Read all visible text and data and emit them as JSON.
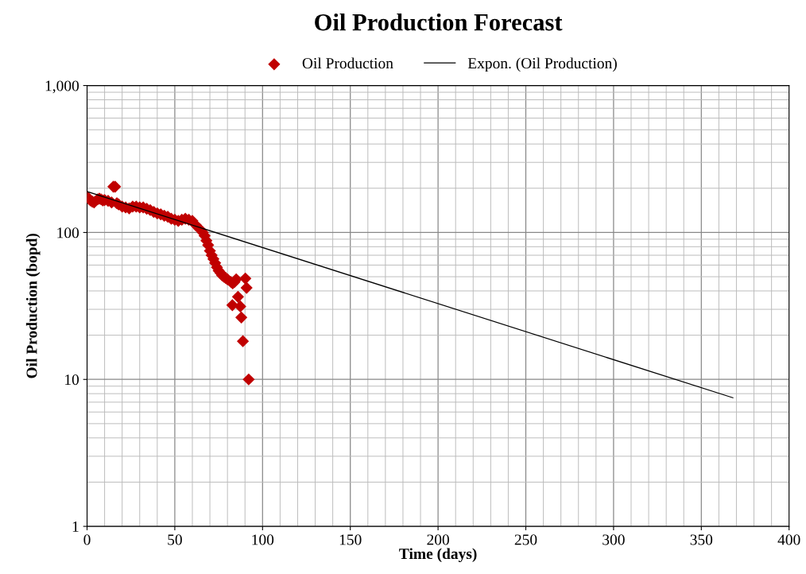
{
  "chart_data": {
    "type": "scatter",
    "title": "Oil Production Forecast",
    "xlabel": "Time (days)",
    "ylabel": "Oil Production (bopd)",
    "log": "y",
    "xlim": [
      0,
      400
    ],
    "xticks": [
      0,
      50,
      100,
      150,
      200,
      250,
      300,
      350,
      400
    ],
    "ylim": [
      1,
      1000
    ],
    "yticks": [
      1,
      10,
      100,
      {
        "value": 1000,
        "label": "1,000"
      }
    ],
    "grid": true,
    "legend": "top",
    "series": [
      {
        "name": "Oil Production",
        "marker": "diamond",
        "color": "#c00000",
        "x": [
          0,
          1,
          2,
          3,
          4,
          6,
          7,
          8,
          9,
          10,
          12,
          14,
          15,
          16,
          17,
          18,
          20,
          22,
          24,
          26,
          28,
          30,
          32,
          34,
          36,
          38,
          40,
          42,
          44,
          46,
          48,
          50,
          52,
          54,
          56,
          58,
          60,
          62,
          64,
          66,
          67,
          68,
          69,
          70,
          71,
          72,
          73,
          74,
          75,
          76,
          77,
          78,
          79,
          80,
          82,
          83,
          84,
          85,
          90.2,
          90.9,
          86,
          82.8,
          87.3,
          87.9,
          88.8,
          92.1
        ],
        "values": [
          175,
          170,
          165,
          162,
          160,
          168,
          170,
          168,
          165,
          166,
          164,
          160,
          205,
          205,
          158,
          155,
          150,
          148,
          146,
          150,
          150,
          148,
          148,
          145,
          142,
          138,
          135,
          133,
          130,
          128,
          124,
          122,
          120,
          122,
          124,
          122,
          120,
          112,
          106,
          100,
          95,
          88,
          82,
          75,
          70,
          66,
          62,
          58,
          55,
          53,
          51,
          50,
          49,
          48,
          46,
          45,
          46,
          48,
          48.6,
          42,
          36.5,
          32,
          31.4,
          26.4,
          18.2,
          10
        ]
      },
      {
        "name": "Expon. (Oil Production)",
        "type": "line",
        "marker": "none",
        "line_style": "solid",
        "color": "#000000",
        "x": [
          0,
          368
        ],
        "values": [
          190,
          7.5
        ]
      }
    ]
  }
}
